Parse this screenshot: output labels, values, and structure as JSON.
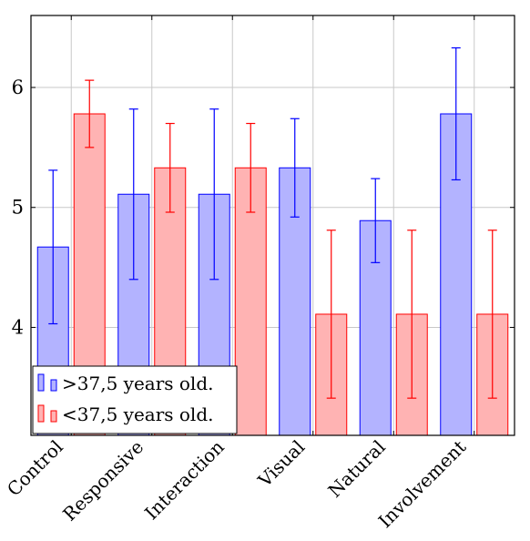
{
  "chart_data": {
    "type": "bar",
    "categories": [
      "Control",
      "Responsive",
      "Interaction",
      "Visual",
      "Natural",
      "Involvement"
    ],
    "series": [
      {
        "name": ">37,5 years old.",
        "values": [
          4.67,
          5.11,
          5.11,
          5.33,
          4.89,
          5.78
        ],
        "error": [
          0.64,
          0.71,
          0.71,
          0.41,
          0.35,
          0.55
        ],
        "color": "#0000ff",
        "fill": "#b3b3ff"
      },
      {
        "name": "<37,5 years old.",
        "values": [
          5.78,
          5.33,
          5.33,
          4.11,
          4.11,
          4.11
        ],
        "error": [
          0.28,
          0.37,
          0.37,
          0.7,
          0.7,
          0.7
        ],
        "color": "#ff0000",
        "fill": "#ffb3b3"
      }
    ],
    "yticks": [
      4,
      5,
      6
    ],
    "ylim": [
      3.1,
      6.6
    ],
    "grid": true,
    "legend_position": "bottom-left",
    "xlabel": "",
    "ylabel": ""
  }
}
